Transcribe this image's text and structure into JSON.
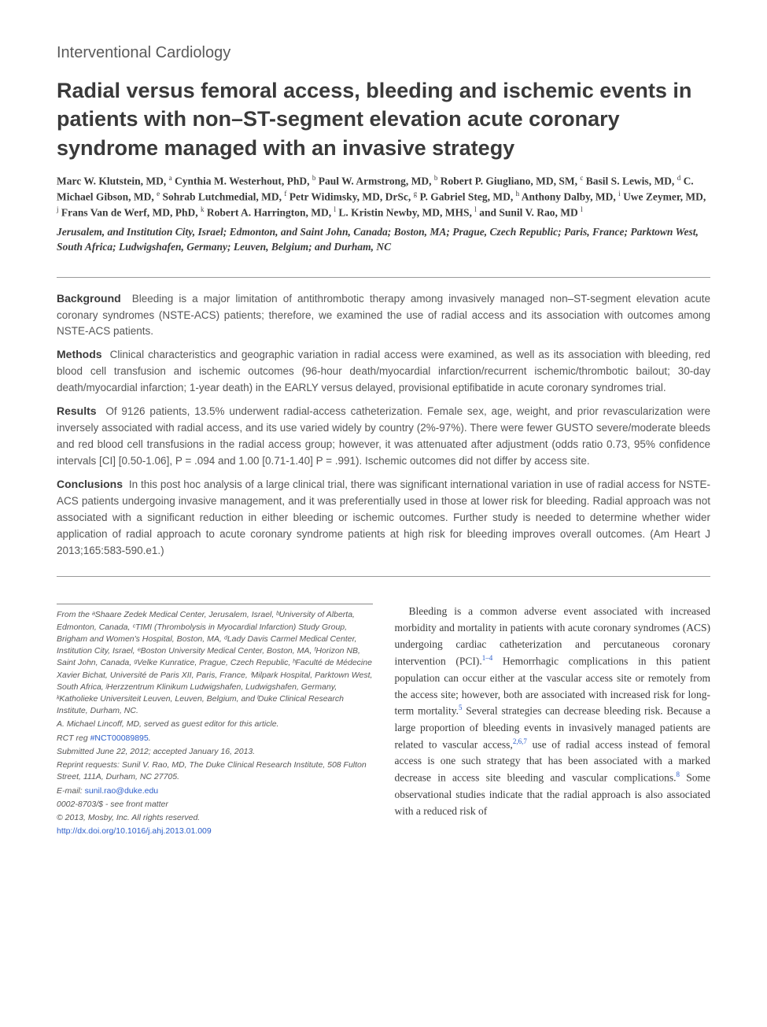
{
  "section_label": "Interventional Cardiology",
  "title": "Radial versus femoral access, bleeding and ischemic events in patients with non–ST-segment elevation acute coronary syndrome managed with an invasive strategy",
  "authors_html": "Marc W. Klutstein, MD, <sup>a</sup> Cynthia M. Westerhout, PhD, <sup>b</sup> Paul W. Armstrong, MD, <sup>b</sup> Robert P. Giugliano, MD, SM, <sup>c</sup> Basil S. Lewis, MD, <sup>d</sup> C. Michael Gibson, MD, <sup>e</sup> Sohrab Lutchmedial, MD, <sup>f</sup> Petr Widimsky, MD, DrSc, <sup>g</sup> P. Gabriel Steg, MD, <sup>h</sup> Anthony Dalby, MD, <sup>i</sup> Uwe Zeymer, MD, <sup>j</sup> Frans Van de Werf, MD, PhD, <sup>k</sup> Robert A. Harrington, MD, <sup>l</sup> L. Kristin Newby, MD, MHS, <sup>l</sup> and Sunil V. Rao, MD <sup>l</sup>",
  "affil_cities": "Jerusalem, and Institution City, Israel; Edmonton, and Saint John, Canada; Boston, MA; Prague, Czech Republic; Paris, France; Parktown West, South Africa; Ludwigshafen, Germany; Leuven, Belgium; and Durham, NC",
  "abstract": {
    "background": {
      "heading": "Background",
      "text": "Bleeding is a major limitation of antithrombotic therapy among invasively managed non–ST-segment elevation acute coronary syndromes (NSTE-ACS) patients; therefore, we examined the use of radial access and its association with outcomes among NSTE-ACS patients."
    },
    "methods": {
      "heading": "Methods",
      "text": "Clinical characteristics and geographic variation in radial access were examined, as well as its association with bleeding, red blood cell transfusion and ischemic outcomes (96-hour death/myocardial infarction/recurrent ischemic/thrombotic bailout; 30-day death/myocardial infarction; 1-year death) in the EARLY versus delayed, provisional eptifibatide in acute coronary syndromes trial."
    },
    "results": {
      "heading": "Results",
      "text": "Of 9126 patients, 13.5% underwent radial-access catheterization. Female sex, age, weight, and prior revascularization were inversely associated with radial access, and its use varied widely by country (2%-97%). There were fewer GUSTO severe/moderate bleeds and red blood cell transfusions in the radial access group; however, it was attenuated after adjustment (odds ratio 0.73, 95% confidence intervals [CI] [0.50-1.06], P = .094 and 1.00 [0.71-1.40] P = .991). Ischemic outcomes did not differ by access site."
    },
    "conclusions": {
      "heading": "Conclusions",
      "text": "In this post hoc analysis of a large clinical trial, there was significant international variation in use of radial access for NSTE-ACS patients undergoing invasive management, and it was preferentially used in those at lower risk for bleeding. Radial approach was not associated with a significant reduction in either bleeding or ischemic outcomes. Further study is needed to determine whether wider application of radial approach to acute coronary syndrome patients at high risk for bleeding improves overall outcomes. (Am Heart J 2013;165:583-590.e1.)"
    }
  },
  "footnote": {
    "affiliations": "From the ᵃShaare Zedek Medical Center, Jerusalem, Israel, ᵇUniversity of Alberta, Edmonton, Canada, ᶜTIMI (Thrombolysis in Myocardial Infarction) Study Group, Brigham and Women's Hospital, Boston, MA, ᵈLady Davis Carmel Medical Center, Institution City, Israel, ᵉBoston University Medical Center, Boston, MA, ᶠHorizon NB, Saint John, Canada, ᵍVelke Kunratice, Prague, Czech Republic, ʰFaculté de Médecine Xavier Bichat, Université de Paris XII, Paris, France, ⁱMilpark Hospital, Parktown West, South Africa, ʲHerzzentrum Klinikum Ludwigshafen, Ludwigshafen, Germany, ᵏKatholieke Universiteit Leuven, Leuven, Belgium, and ˡDuke Clinical Research Institute, Durham, NC.",
    "guest_editor": "A. Michael Lincoff, MD, served as guest editor for this article.",
    "rct_label": "RCT reg ",
    "rct_num": "#NCT00089895",
    "rct_period": ".",
    "submitted": "Submitted June 22, 2012; accepted January 16, 2013.",
    "reprint": "Reprint requests: Sunil V. Rao, MD, The Duke Clinical Research Institute, 508 Fulton Street, 111A, Durham, NC 27705.",
    "email_label": "E-mail: ",
    "email": "sunil.rao@duke.edu",
    "issn": "0002-8703/$ - see front matter",
    "copyright": "© 2013, Mosby, Inc. All rights reserved.",
    "doi": "http://dx.doi.org/10.1016/j.ahj.2013.01.009"
  },
  "body_para": {
    "text_pre": "Bleeding is a common adverse event associated with increased morbidity and mortality in patients with acute coronary syndromes (ACS) undergoing cardiac catheterization and percutaneous coronary intervention (PCI).",
    "ref1": "1–4",
    "text_mid1": " Hemorrhagic complications in this patient population can occur either at the vascular access site or remotely from the access site; however, both are associated with increased risk for long-term mortality.",
    "ref2": "5",
    "text_mid2": " Several strategies can decrease bleeding risk. Because a large proportion of bleeding events in invasively managed patients are related to vascular access,",
    "ref3": "2,6,7",
    "text_mid3": " use of radial access instead of femoral access is one such strategy that has been associated with a marked decrease in access site bleeding and vascular complications.",
    "ref4": "8",
    "text_end": " Some observational studies indicate that the radial approach is also associated with a reduced risk of"
  },
  "colors": {
    "text": "#4a4a4a",
    "heading": "#3a3a3a",
    "link": "#2a5cc9",
    "rule": "#9a9a9a",
    "background": "#ffffff"
  }
}
